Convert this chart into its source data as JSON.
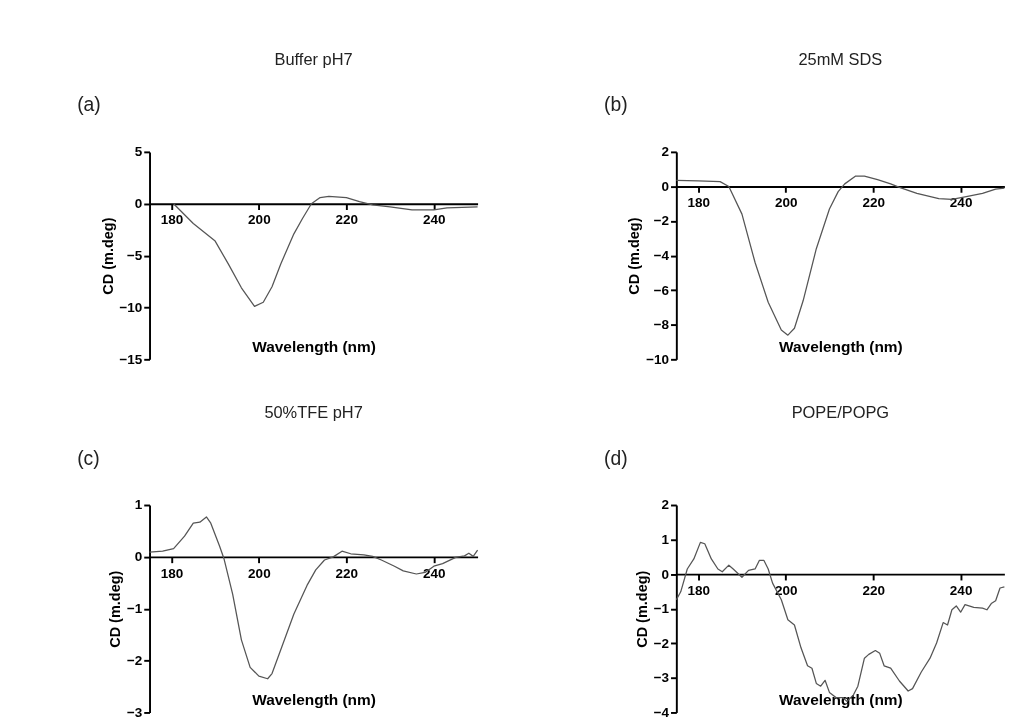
{
  "chart_data": [
    {
      "type": "line",
      "title": "Buffer pH7",
      "annotations": [
        "(a)"
      ],
      "xlabel": "Wavelength (nm)",
      "ylabel": "CD (m.deg)",
      "xlim": [
        175,
        250
      ],
      "ylim": [
        -15,
        5
      ],
      "xticks": [
        180,
        200,
        220,
        240
      ],
      "yticks": [
        -15,
        -10,
        -5,
        0,
        5
      ],
      "x": [
        180.5,
        185,
        190,
        193,
        196,
        199,
        201,
        203,
        205,
        208,
        210,
        212,
        214,
        216,
        220,
        223,
        226,
        230,
        235,
        240,
        243,
        250
      ],
      "series": [
        {
          "color": "#555555",
          "values": [
            0,
            -1.9,
            -3.6,
            -5.8,
            -8.1,
            -9.9,
            -9.5,
            -8.0,
            -5.8,
            -2.9,
            -1.4,
            0,
            0.6,
            0.7,
            0.6,
            0.2,
            -0.1,
            -0.3,
            -0.6,
            -0.6,
            -0.4,
            -0.3
          ]
        }
      ]
    },
    {
      "type": "line",
      "title": "25mM SDS",
      "annotations": [
        "(b)"
      ],
      "xlabel": "Wavelength (nm)",
      "ylabel": "CD (m.deg)",
      "xlim": [
        175,
        250
      ],
      "ylim": [
        -10,
        2
      ],
      "xticks": [
        180,
        200,
        220,
        240
      ],
      "yticks": [
        -10,
        -8,
        -6,
        -4,
        -2,
        0,
        2
      ],
      "x": [
        175,
        180,
        185,
        187,
        190,
        193,
        196,
        199,
        200.5,
        202,
        204,
        207,
        210,
        212,
        213.5,
        216,
        218,
        221,
        224,
        226,
        230,
        235,
        238,
        241,
        245,
        248,
        250
      ],
      "series": [
        {
          "color": "#555555",
          "values": [
            0.35,
            0.32,
            0.28,
            0,
            -1.6,
            -4.4,
            -6.7,
            -8.3,
            -8.6,
            -8.2,
            -6.6,
            -3.6,
            -1.3,
            -0.3,
            0.15,
            0.6,
            0.6,
            0.4,
            0.15,
            -0.05,
            -0.4,
            -0.7,
            -0.75,
            -0.6,
            -0.4,
            -0.15,
            -0.1
          ]
        }
      ]
    },
    {
      "type": "line",
      "title": "50%TFE pH7",
      "annotations": [
        "(c)"
      ],
      "xlabel": "Wavelength (nm)",
      "ylabel": "CD (m.deg)",
      "xlim": [
        175,
        250
      ],
      "ylim": [
        -3,
        1
      ],
      "xticks": [
        180,
        200,
        220,
        240
      ],
      "yticks": [
        -3,
        -2,
        -1,
        0,
        1
      ],
      "x": [
        175,
        178,
        180.5,
        183,
        185,
        186.5,
        188,
        189,
        191,
        192,
        194,
        196,
        198,
        200,
        202,
        203,
        205,
        208,
        211,
        213,
        215,
        217,
        219,
        221,
        224,
        226,
        228,
        231,
        233,
        236,
        238,
        240,
        242,
        245,
        247,
        248,
        249,
        250
      ],
      "series": [
        {
          "color": "#555555",
          "values": [
            0.09,
            0.11,
            0.16,
            0.4,
            0.65,
            0.67,
            0.77,
            0.65,
            0.21,
            -0.03,
            -0.72,
            -1.6,
            -2.13,
            -2.3,
            -2.35,
            -2.25,
            -1.79,
            -1.1,
            -0.55,
            -0.25,
            -0.06,
            0,
            0.11,
            0.06,
            0.04,
            0.01,
            -0.06,
            -0.18,
            -0.27,
            -0.33,
            -0.3,
            -0.18,
            -0.13,
            -0.01,
            0.02,
            0.07,
            0.01,
            0.13
          ]
        }
      ]
    },
    {
      "type": "line",
      "title": "POPE/POPG",
      "annotations": [
        "(d)"
      ],
      "xlabel": "Wavelength (nm)",
      "ylabel": "CD (m.deg)",
      "xlim": [
        175,
        250
      ],
      "ylim": [
        -4,
        2
      ],
      "xticks": [
        180,
        200,
        220,
        240
      ],
      "yticks": [
        -4,
        -3,
        -2,
        -1,
        0,
        1,
        2
      ],
      "x": [
        175,
        176,
        177.5,
        179,
        180.5,
        181.5,
        183,
        184.5,
        185.5,
        187,
        188,
        190,
        191.5,
        193,
        194,
        195,
        196,
        197,
        199,
        200.5,
        202,
        203.5,
        205,
        206,
        207,
        208,
        209,
        210,
        211.5,
        213,
        214,
        215.5,
        216.5,
        218,
        219,
        220.5,
        221.5,
        222.5,
        224,
        226,
        228,
        229,
        231,
        233,
        234.5,
        236,
        237,
        238,
        239,
        240,
        241,
        243,
        245,
        246,
        247,
        248,
        249,
        250
      ],
      "series": [
        {
          "color": "#555555",
          "values": [
            -0.74,
            -0.51,
            0.15,
            0.44,
            0.92,
            0.88,
            0.44,
            0.15,
            0.07,
            0.26,
            0.15,
            -0.09,
            0.11,
            0.15,
            0.4,
            0.4,
            0.15,
            -0.26,
            -0.74,
            -1.32,
            -1.47,
            -2.13,
            -2.65,
            -2.72,
            -3.16,
            -3.24,
            -3.07,
            -3.42,
            -3.57,
            -3.57,
            -3.68,
            -3.49,
            -3.24,
            -2.43,
            -2.32,
            -2.21,
            -2.29,
            -2.65,
            -2.72,
            -3.09,
            -3.38,
            -3.31,
            -2.83,
            -2.43,
            -1.99,
            -1.4,
            -1.47,
            -1.03,
            -0.92,
            -1.1,
            -0.88,
            -0.96,
            -0.98,
            -1.03,
            -0.85,
            -0.77,
            -0.4,
            -0.37
          ]
        }
      ]
    }
  ]
}
